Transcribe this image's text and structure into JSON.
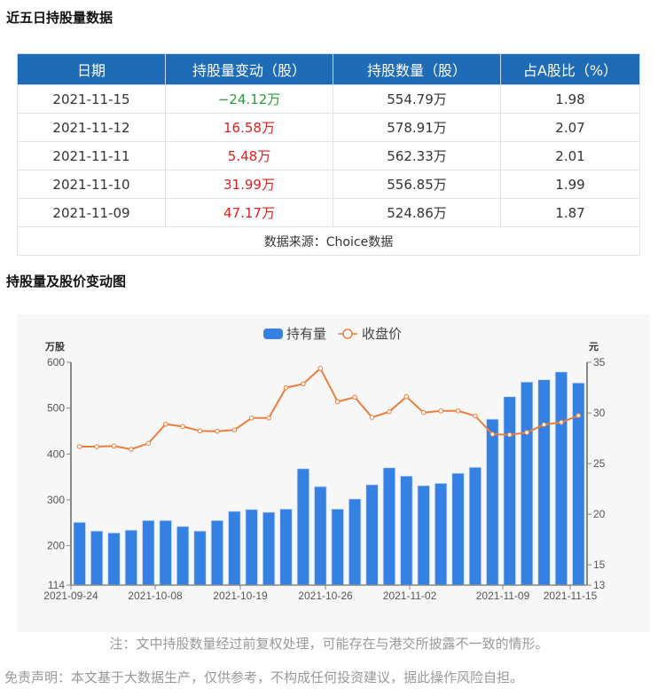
{
  "section1": {
    "title": "近五日持股量数据",
    "headers": [
      "日期",
      "持股量变动（股）",
      "持股数量（股）",
      "占A股比（%）"
    ],
    "rows": [
      {
        "date": "2021-11-15",
        "change": "−24.12万",
        "direction": "down",
        "holding": "554.79万",
        "ratio": "1.98"
      },
      {
        "date": "2021-11-12",
        "change": "16.58万",
        "direction": "up",
        "holding": "578.91万",
        "ratio": "2.07"
      },
      {
        "date": "2021-11-11",
        "change": "5.48万",
        "direction": "up",
        "holding": "562.33万",
        "ratio": "2.01"
      },
      {
        "date": "2021-11-10",
        "change": "31.99万",
        "direction": "up",
        "holding": "556.85万",
        "ratio": "1.99"
      },
      {
        "date": "2021-11-09",
        "change": "47.17万",
        "direction": "up",
        "holding": "524.86万",
        "ratio": "1.87"
      }
    ],
    "source": "数据来源：Choice数据"
  },
  "section2": {
    "title": "持股量及股价变动图"
  },
  "colors": {
    "header_bg": "#1f6bb6",
    "bar": "#3481e3",
    "line": "#ee7d3b",
    "up": "#e02020",
    "down": "#2a9d3a",
    "chart_bg": "#f7f7f7"
  },
  "chart_data": {
    "type": "bar+line",
    "title": "持股量及股价变动图",
    "legend": [
      "持有量",
      "收盘价"
    ],
    "legend_position": "top",
    "x_tick_labels": [
      "2021-09-24",
      "2021-10-08",
      "2021-10-19",
      "2021-10-26",
      "2021-11-02",
      "2021-11-09",
      "2021-11-15"
    ],
    "y_left": {
      "label": "万股",
      "ticks": [
        114,
        200,
        300,
        400,
        500,
        600
      ],
      "range": [
        114,
        600
      ]
    },
    "y_right": {
      "label": "元",
      "ticks": [
        13,
        15,
        20,
        25,
        30,
        35
      ],
      "range": [
        13,
        35
      ]
    },
    "series": [
      {
        "name": "持有量",
        "type": "bar",
        "axis": "left",
        "values": [
          251,
          232,
          228,
          234,
          255,
          255,
          242,
          232,
          255,
          275,
          279,
          273,
          280,
          368,
          329,
          280,
          302,
          333,
          370,
          352,
          331,
          336,
          358,
          371,
          476,
          525,
          557,
          562,
          579,
          555
        ]
      },
      {
        "name": "收盘价",
        "type": "line",
        "axis": "right",
        "values": [
          26.67,
          26.67,
          26.73,
          26.41,
          27.0,
          28.89,
          28.66,
          28.22,
          28.19,
          28.31,
          29.5,
          29.5,
          32.48,
          32.87,
          34.39,
          31.11,
          31.55,
          29.56,
          30.12,
          31.6,
          30.03,
          30.2,
          30.2,
          29.7,
          27.9,
          27.84,
          28.07,
          28.84,
          29.07,
          29.74
        ]
      }
    ],
    "grid": false
  },
  "notes": {
    "note": "注：文中持股数量经过前复权处理，可能存在与港交所披露不一致的情形。",
    "disclaimer": "免责声明：本文基于大数据生产，仅供参考，不构成任何投资建议，据此操作风险自担。"
  }
}
